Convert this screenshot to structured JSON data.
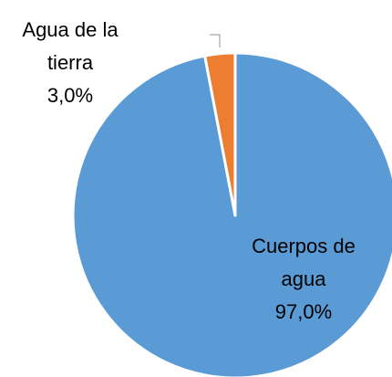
{
  "chart_data": {
    "type": "pie",
    "categories": [
      "Cuerpos de agua",
      "Agua de la tierra"
    ],
    "values": [
      97.0,
      3.0
    ],
    "value_labels": [
      "97,0%",
      "3,0%"
    ],
    "colors": [
      "#5b9bd5",
      "#ed7d31"
    ]
  }
}
